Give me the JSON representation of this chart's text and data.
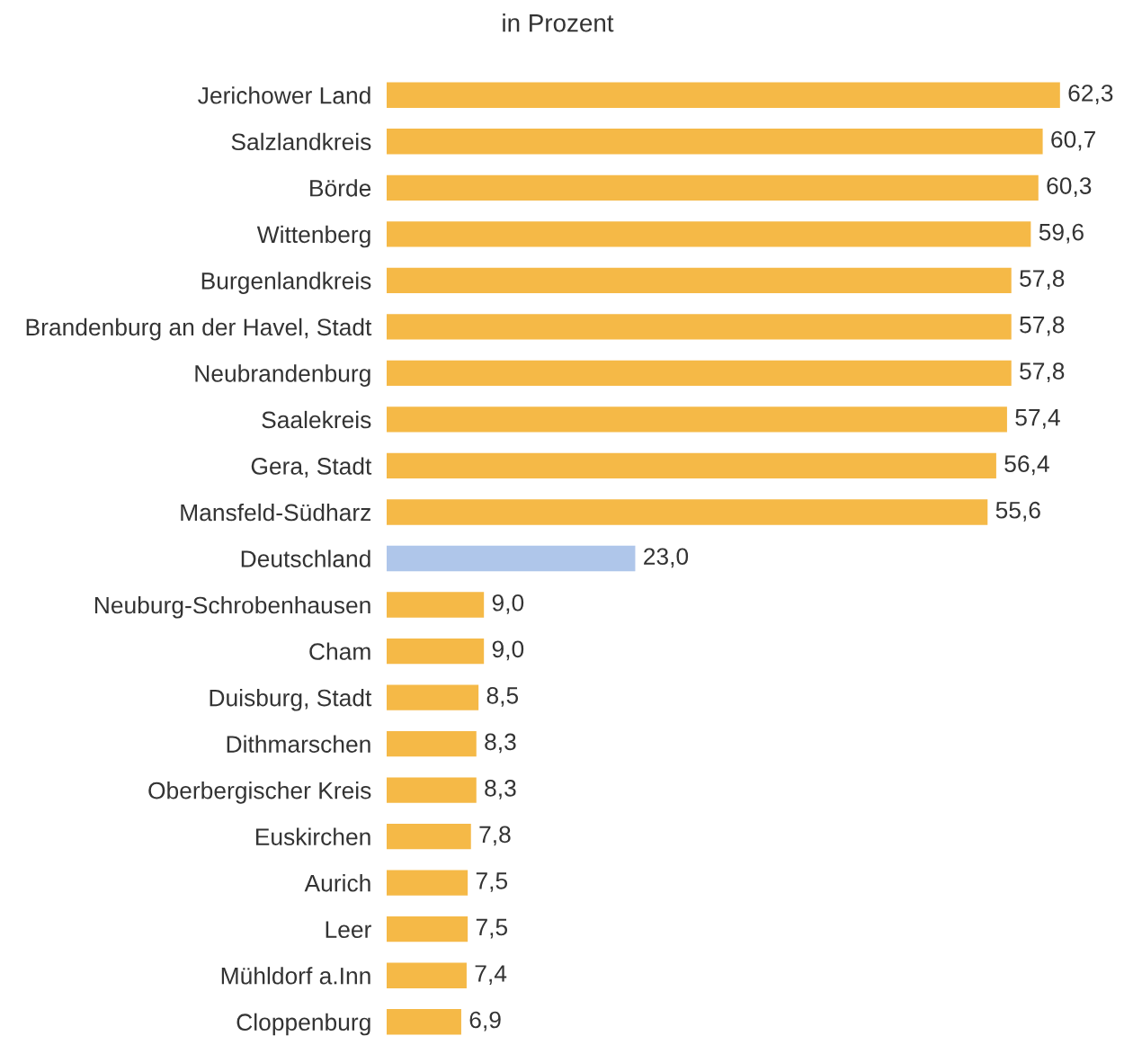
{
  "chart_data": {
    "type": "bar",
    "orientation": "horizontal",
    "title": "in Prozent",
    "categories": [
      "Jerichower Land",
      "Salzlandkreis",
      "Börde",
      "Wittenberg",
      "Burgenlandkreis",
      "Brandenburg an der Havel, Stadt",
      "Neubrandenburg",
      "Saalekreis",
      "Gera, Stadt",
      "Mansfeld-Südharz",
      "Deutschland",
      "Neuburg-Schrobenhausen",
      "Cham",
      "Duisburg, Stadt",
      "Dithmarschen",
      "Oberbergischer Kreis",
      "Euskirchen",
      "Aurich",
      "Leer",
      "Mühldorf a.Inn",
      "Cloppenburg"
    ],
    "values": [
      62.3,
      60.7,
      60.3,
      59.6,
      57.8,
      57.8,
      57.8,
      57.4,
      56.4,
      55.6,
      23.0,
      9.0,
      9.0,
      8.5,
      8.3,
      8.3,
      7.8,
      7.5,
      7.5,
      7.4,
      6.9
    ],
    "value_labels": [
      "62,3",
      "60,7",
      "60,3",
      "59,6",
      "57,8",
      "57,8",
      "57,8",
      "57,4",
      "56,4",
      "55,6",
      "23,0",
      "9,0",
      "9,0",
      "8,5",
      "8,3",
      "8,3",
      "7,8",
      "7,5",
      "7,5",
      "7,4",
      "6,9"
    ],
    "colors": [
      "#f5b947",
      "#f5b947",
      "#f5b947",
      "#f5b947",
      "#f5b947",
      "#f5b947",
      "#f5b947",
      "#f5b947",
      "#f5b947",
      "#f5b947",
      "#afc6ea",
      "#f5b947",
      "#f5b947",
      "#f5b947",
      "#f5b947",
      "#f5b947",
      "#f5b947",
      "#f5b947",
      "#f5b947",
      "#f5b947",
      "#f5b947"
    ],
    "grid": false,
    "legend": false
  }
}
